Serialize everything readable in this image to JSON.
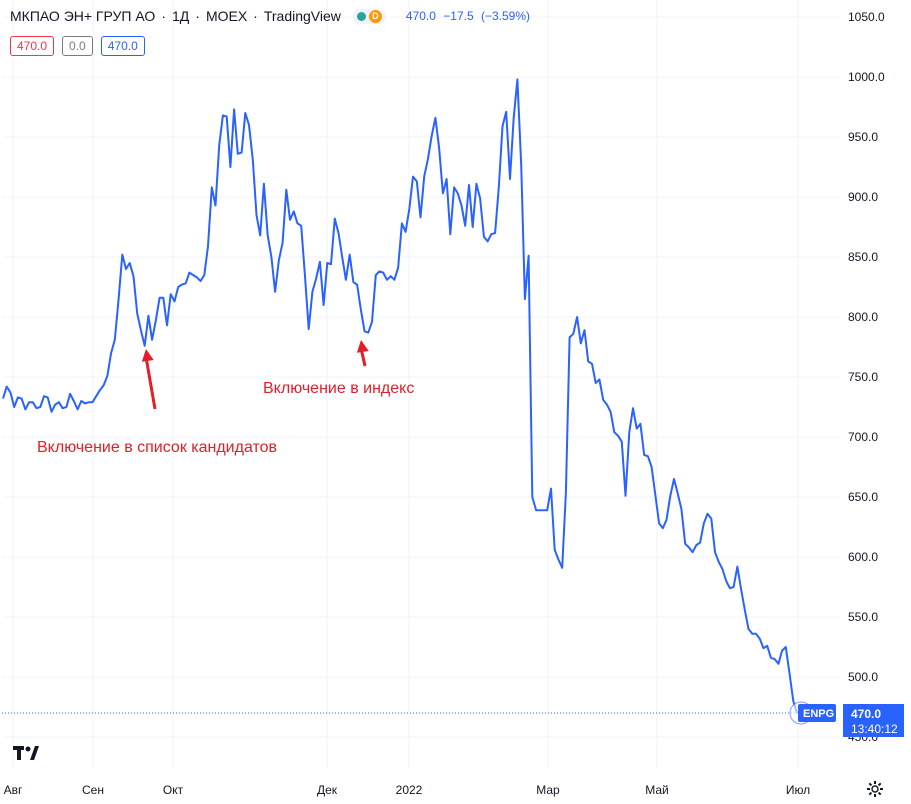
{
  "header": {
    "title": "МКПАО ЭН+ ГРУП АО",
    "interval": "1Д",
    "exchange": "MOEX",
    "source": "TradingView",
    "separator": "·",
    "status_badge": "D",
    "quote_price": "470.0",
    "quote_change": "−17.5",
    "quote_change_pct": "(−3.59%)"
  },
  "pills": {
    "sell": "470.0",
    "spread": "0.0",
    "buy": "470.0"
  },
  "last_label": {
    "ticker": "ENPG",
    "price": "470.0",
    "time": "13:40:12"
  },
  "colors": {
    "line": "#2962ff",
    "annotation": "#e41e26",
    "grid": "#f0f3fa",
    "axis_text": "#131722"
  },
  "chart_data": {
    "type": "line",
    "ylim": [
      430,
      1055
    ],
    "y_ticks": [
      "1050.0",
      "1000.0",
      "950.0",
      "900.0",
      "850.0",
      "800.0",
      "750.0",
      "700.0",
      "650.0",
      "600.0",
      "550.0",
      "500.0",
      "450.0"
    ],
    "x_ticks": [
      "Авг",
      "Сен",
      "Окт",
      "Дек",
      "2022",
      "Мар",
      "Май",
      "Июл"
    ],
    "series": [
      {
        "values": [
          732,
          742,
          737,
          725,
          733,
          732,
          723,
          729,
          729,
          724,
          725,
          734,
          733,
          721,
          727,
          729,
          724,
          725,
          736,
          730,
          723,
          730,
          728,
          729,
          729,
          734,
          739,
          743,
          751,
          770,
          781,
          815,
          852,
          840,
          845,
          834,
          803,
          789,
          776,
          801,
          781,
          797,
          816,
          816,
          793,
          819,
          813,
          825,
          827,
          828,
          837,
          835,
          833,
          830,
          835,
          859,
          908,
          893,
          943,
          968,
          967,
          925,
          973,
          936,
          937,
          970,
          960,
          931,
          885,
          868,
          911,
          868,
          850,
          821,
          847,
          862,
          906,
          881,
          888,
          878,
          876,
          835,
          790,
          821,
          832,
          846,
          810,
          845,
          844,
          882,
          870,
          850,
          831,
          852,
          829,
          827,
          806,
          788,
          787,
          796,
          835,
          838,
          837,
          831,
          834,
          831,
          841,
          878,
          871,
          890,
          917,
          913,
          883,
          917,
          932,
          951,
          966,
          941,
          903,
          915,
          869,
          908,
          903,
          893,
          876,
          910,
          875,
          911,
          899,
          867,
          863,
          869,
          870,
          908,
          959,
          971,
          915,
          966,
          998,
          927,
          815,
          851,
          650,
          639,
          639,
          639,
          639,
          657,
          606,
          598,
          591,
          654,
          783,
          786,
          800,
          778,
          789,
          763,
          761,
          745,
          748,
          731,
          727,
          721,
          704,
          701,
          696,
          651,
          704,
          724,
          707,
          711,
          685,
          684,
          675,
          652,
          628,
          624,
          631,
          651,
          665,
          653,
          640,
          611,
          608,
          604,
          610,
          612,
          628,
          636,
          632,
          604,
          596,
          590,
          580,
          574,
          575,
          592,
          573,
          556,
          540,
          536,
          536,
          532,
          524,
          526,
          516,
          515,
          511,
          522,
          525,
          503,
          480,
          470
        ]
      }
    ],
    "annotations": [
      {
        "text": "Включение в список кандидатов",
        "index": 38
      },
      {
        "text": "Включение в индекс",
        "index": 98
      }
    ]
  }
}
